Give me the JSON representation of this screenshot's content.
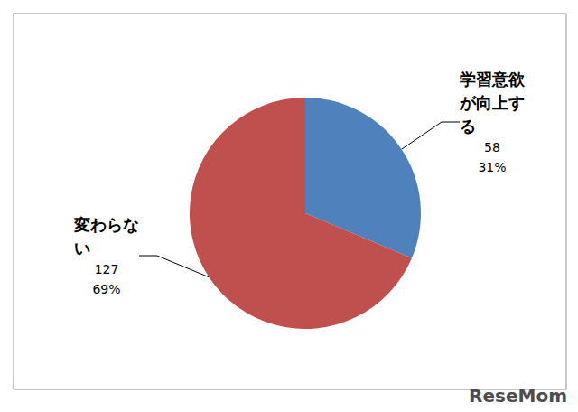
{
  "chart_data": {
    "type": "pie",
    "categories": [
      "学習意欲が向上する",
      "変わらない"
    ],
    "values": [
      58,
      127
    ],
    "percent_labels": [
      "31%",
      "69%"
    ],
    "colors": [
      "#4f81bd",
      "#c0504d"
    ],
    "data_labels": true,
    "annotations": [
      "ReseMom"
    ]
  }
}
